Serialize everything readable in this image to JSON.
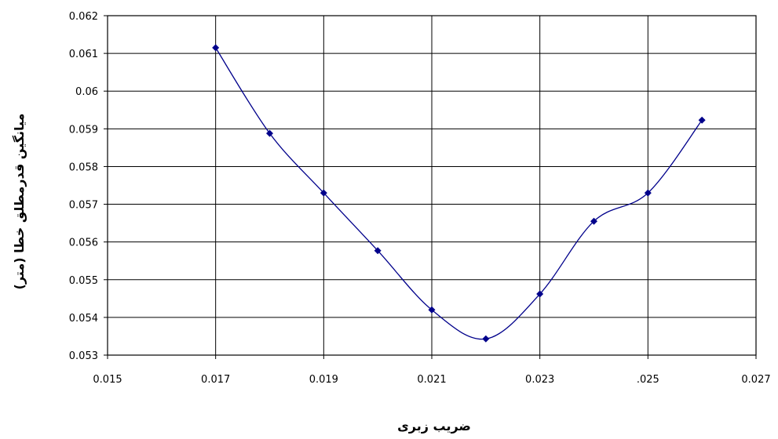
{
  "chart_data": {
    "type": "scatter",
    "smoothed_line": true,
    "x_tick_labels": [
      "0.015",
      "0.017",
      "0.019",
      "0.021",
      "0.023",
      ".025",
      "0.027"
    ],
    "y_tick_labels": [
      "0.053",
      "0.054",
      "0.055",
      "0.056",
      "0.057",
      "0.058",
      "0.059",
      "0.06",
      "0.061",
      "0.062"
    ],
    "xlim": [
      0.015,
      0.027
    ],
    "ylim": [
      0.053,
      0.062
    ],
    "xlabel": "ضریب زبری",
    "ylabel": "میانگین قدرمطلق خطا (متر)",
    "grid": true,
    "series": [
      {
        "color": "#00008B",
        "x": [
          0.017,
          0.018,
          0.019,
          0.02,
          0.021,
          0.022,
          0.023,
          0.024,
          0.025,
          0.026
        ],
        "y": [
          0.06115,
          0.05888,
          0.0573,
          0.05577,
          0.0542,
          0.05343,
          0.05462,
          0.05655,
          0.0573,
          0.05923
        ]
      }
    ]
  }
}
